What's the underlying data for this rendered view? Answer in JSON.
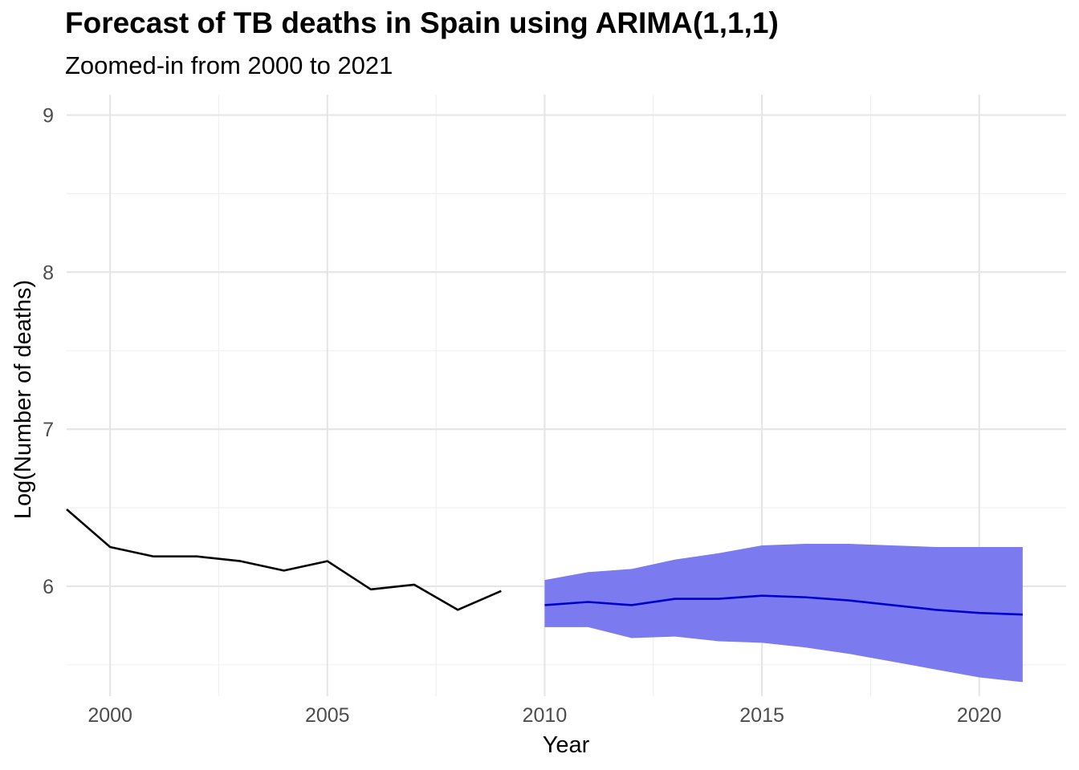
{
  "chart_data": {
    "type": "line",
    "title": "Forecast of TB deaths in Spain using ARIMA(1,1,1)",
    "subtitle": "Zoomed-in from 2000 to 2021",
    "xlabel": "Year",
    "ylabel": "Log(Number of deaths)",
    "xlim": [
      1999,
      2022
    ],
    "ylim": [
      5.3,
      9.13
    ],
    "x_ticks": [
      2000,
      2005,
      2010,
      2015,
      2020
    ],
    "y_ticks": [
      6,
      7,
      8,
      9
    ],
    "grid": true,
    "legend": "none",
    "series": [
      {
        "role": "observed",
        "color": "#000000",
        "x": [
          1999,
          2000,
          2001,
          2002,
          2003,
          2004,
          2005,
          2006,
          2007,
          2008,
          2009
        ],
        "values": [
          6.49,
          6.25,
          6.19,
          6.19,
          6.16,
          6.1,
          6.16,
          5.98,
          6.01,
          5.85,
          5.97
        ]
      },
      {
        "role": "forecast",
        "color": "#0000cc",
        "x": [
          2010,
          2011,
          2012,
          2013,
          2014,
          2015,
          2016,
          2017,
          2018,
          2019,
          2020,
          2021
        ],
        "values": [
          5.88,
          5.9,
          5.88,
          5.92,
          5.92,
          5.94,
          5.93,
          5.91,
          5.88,
          5.85,
          5.83,
          5.82
        ],
        "lower": [
          5.74,
          5.74,
          5.67,
          5.68,
          5.65,
          5.64,
          5.61,
          5.57,
          5.52,
          5.47,
          5.42,
          5.39
        ],
        "upper": [
          6.04,
          6.09,
          6.11,
          6.17,
          6.21,
          6.26,
          6.27,
          6.27,
          6.26,
          6.25,
          6.25,
          6.25
        ],
        "band_color": "#7b7bef"
      }
    ]
  }
}
